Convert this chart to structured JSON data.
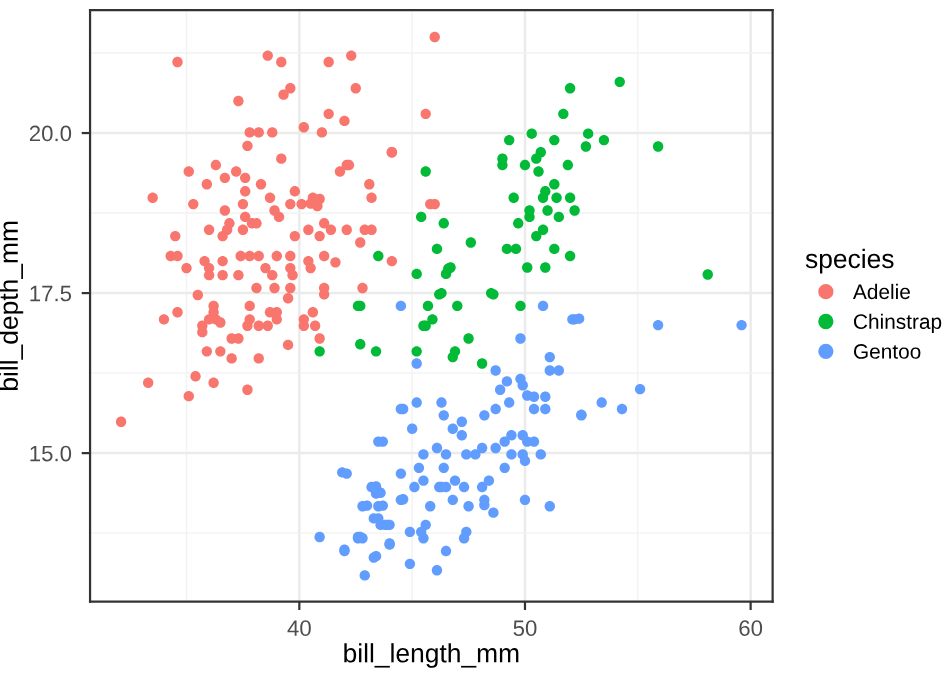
{
  "chart_data": {
    "type": "scatter",
    "xlabel": "bill_length_mm",
    "ylabel": "bill_depth_mm",
    "legend_title": "species",
    "legend": "right",
    "grid": true,
    "marker": "circle",
    "xlim": [
      30.725,
      60.975
    ],
    "ylim": [
      12.68,
      21.92
    ],
    "xticks": [
      40,
      50,
      60
    ],
    "yticks": [
      {
        "value": 15,
        "label": "15.0"
      },
      {
        "value": 17.5,
        "label": "17.5"
      },
      {
        "value": 20,
        "label": "20.0"
      }
    ],
    "series": [
      {
        "name": "Adelie",
        "color": "#f8766d",
        "x": [
          34.6,
          38.6,
          39.2,
          41.3,
          42.3,
          46.0,
          39.6,
          39.3,
          42.5,
          37.3,
          41.3,
          42.0,
          40.2,
          41.0,
          37.8,
          38.2,
          38.8,
          37.7,
          44.1,
          39.2,
          35.1,
          36.3,
          37.2,
          41.8,
          42.1,
          42.2,
          35.9,
          36.7,
          37.6,
          37.6,
          38.3,
          39.8,
          43.1,
          43.2,
          33.5,
          35.3,
          38.7,
          36.7,
          37.5,
          39.6,
          40.1,
          40.6,
          38.9,
          39.1,
          36.9,
          36.8,
          36.0,
          37.6,
          37.9,
          38.1,
          40.5,
          40.8,
          40.9,
          41.1,
          41.4,
          42.1,
          42.9,
          43.2,
          34.5,
          36.6,
          37.5,
          40.4,
          39.8,
          40.9,
          34.3,
          34.6,
          35.8,
          36.6,
          37.4,
          37.8,
          38.2,
          39.0,
          39.6,
          40.4,
          41.1,
          41.6,
          42.7,
          35.0,
          36.0,
          36.0,
          36.6,
          37.3,
          38.5,
          38.8,
          39.6,
          39.7,
          40.5,
          38.1,
          38.9,
          39.6,
          41.1,
          42.8,
          35.5,
          39.5,
          41.1,
          36.2,
          36.3,
          36.2,
          34.0,
          34.6,
          35.7,
          35.7,
          36.0,
          36.5,
          37.8,
          37.8,
          37.7,
          38.2,
          38.6,
          38.7,
          39.0,
          39.0,
          40.2,
          40.2,
          40.6,
          40.7,
          40.9,
          39.5,
          37.0,
          37.3,
          36.5,
          35.9,
          37.0,
          38.2,
          35.4,
          36.2,
          35.1,
          37.7,
          33.3,
          32.1,
          45.6,
          44.1,
          45.8,
          46.0,
          44.1
        ],
        "values": [
          21.11,
          21.21,
          21.11,
          21.11,
          21.21,
          21.5,
          20.7,
          20.6,
          20.7,
          20.5,
          20.3,
          20.19,
          20.09,
          20.01,
          20.01,
          20.01,
          20.01,
          19.8,
          19.7,
          19.6,
          19.4,
          19.5,
          19.4,
          19.4,
          19.5,
          19.5,
          19.2,
          19.3,
          19.3,
          19.09,
          19.2,
          19.09,
          19.2,
          18.99,
          18.99,
          18.89,
          18.99,
          18.79,
          18.89,
          18.89,
          18.89,
          18.99,
          18.79,
          18.69,
          18.59,
          18.49,
          18.49,
          18.69,
          18.59,
          18.59,
          18.9,
          18.86,
          18.97,
          18.59,
          18.49,
          18.49,
          18.49,
          18.49,
          18.39,
          18.39,
          18.49,
          18.49,
          18.39,
          18.39,
          18.08,
          18.08,
          18.0,
          18.0,
          18.08,
          18.08,
          18.08,
          18.08,
          18.08,
          18.0,
          18.08,
          17.98,
          18.29,
          17.89,
          17.89,
          17.78,
          17.78,
          17.78,
          17.89,
          17.78,
          17.89,
          17.78,
          17.89,
          17.58,
          17.58,
          17.58,
          17.58,
          17.58,
          17.47,
          17.42,
          17.48,
          17.3,
          17.09,
          17.2,
          17.09,
          17.2,
          16.99,
          16.89,
          17.09,
          17.04,
          17.3,
          17.09,
          16.99,
          16.99,
          16.99,
          17.2,
          17.2,
          17.09,
          17.09,
          16.99,
          17.2,
          16.99,
          16.79,
          16.69,
          16.79,
          16.79,
          16.59,
          16.59,
          16.48,
          16.48,
          16.2,
          16.1,
          15.89,
          15.99,
          16.1,
          15.49,
          20.3,
          19.7,
          18.89,
          18.89,
          18.0
        ]
      },
      {
        "name": "Chinstrap",
        "color": "#00ba38",
        "x": [
          43.5,
          42.6,
          42.7,
          42.7,
          43.4,
          40.9,
          54.2,
          52.0,
          51.7,
          49.3,
          50.3,
          51.3,
          52.8,
          53.5,
          52.7,
          55.9,
          49.0,
          49.0,
          50.0,
          50.5,
          50.7,
          50.6,
          51.9,
          45.6,
          51.3,
          50.9,
          50.8,
          51.4,
          52.0,
          49.5,
          45.4,
          46.4,
          50.2,
          51.0,
          52.2,
          50.2,
          51.5,
          49.7,
          50.8,
          50.5,
          47.6,
          46.1,
          49.2,
          49.6,
          51.3,
          52.0,
          45.2,
          46.5,
          46.6,
          46.7,
          50.1,
          50.9,
          46.3,
          48.5,
          58.1,
          45.7,
          47.0,
          46.2,
          48.6,
          49.8,
          45.9,
          45.6,
          45.5,
          47.5,
          46.9,
          46.8,
          45.2,
          48.1
        ],
        "values": [
          18.08,
          17.3,
          17.3,
          16.7,
          16.59,
          16.59,
          20.8,
          20.7,
          20.3,
          19.89,
          19.99,
          19.89,
          19.99,
          19.89,
          19.79,
          19.79,
          19.6,
          19.5,
          19.5,
          19.6,
          19.7,
          19.4,
          19.5,
          19.4,
          19.2,
          19.09,
          18.99,
          18.99,
          18.99,
          18.99,
          18.69,
          18.59,
          18.79,
          18.79,
          18.79,
          18.69,
          18.69,
          18.59,
          18.49,
          18.39,
          18.29,
          18.19,
          18.19,
          18.19,
          18.19,
          18.08,
          17.8,
          17.8,
          17.88,
          17.9,
          17.9,
          17.9,
          17.5,
          17.5,
          17.79,
          17.3,
          17.3,
          17.48,
          17.48,
          17.3,
          17.09,
          16.99,
          16.99,
          16.79,
          16.59,
          16.5,
          16.59,
          16.4
        ]
      },
      {
        "name": "Gentoo",
        "color": "#619cff",
        "x": [
          44.5,
          44.6,
          43.7,
          41.9,
          43.4,
          43.6,
          43.0,
          43.7,
          43.5,
          43.8,
          44.0,
          44.6,
          40.9,
          42.6,
          42.7,
          42.0,
          44.0,
          43.4,
          42.9,
          50.8,
          52.1,
          52.2,
          49.8,
          45.2,
          51.1,
          51.1,
          51.5,
          48.7,
          49.8,
          49.9,
          50.1,
          50.4,
          50.9,
          48.9,
          49.2,
          45.2,
          46.3,
          44.5,
          46.4,
          48.7,
          49.3,
          50.4,
          50.9,
          52.5,
          48.2,
          47.2,
          46.8,
          47.2,
          45.0,
          49.4,
          49.9,
          50.1,
          50.4,
          43.5,
          49.1,
          46.1,
          45.5,
          46.5,
          47.4,
          47.8,
          48.1,
          48.7,
          49.4,
          49.9,
          50.7,
          49.1,
          50.0,
          42.1,
          44.5,
          46.4,
          45.3,
          46.2,
          46.5,
          46.3,
          45.5,
          45.1,
          43.2,
          43.4,
          44.5,
          42.8,
          43.5,
          45.8,
          46.8,
          47.5,
          48.2,
          48.6,
          48.1,
          48.4,
          46.9,
          47.3,
          48.2,
          50.0,
          51.1,
          43.3,
          43.6,
          43.9,
          45.6,
          44.9,
          45.4,
          45.5,
          47.4,
          47.3,
          42.6,
          42.8,
          44.0,
          46.5,
          42.0,
          43.3,
          44.9,
          46.1,
          55.9,
          59.6,
          55.1,
          54.3,
          53.4,
          52.5,
          52.4
        ],
        "values": [
          17.3,
          15.69,
          15.18,
          14.7,
          14.48,
          14.38,
          14.18,
          14.18,
          13.98,
          13.88,
          13.88,
          14.28,
          13.69,
          13.69,
          13.69,
          13.49,
          13.59,
          13.39,
          13.09,
          17.3,
          17.09,
          17.09,
          16.79,
          16.4,
          16.5,
          16.29,
          16.29,
          16.29,
          16.16,
          16.06,
          15.9,
          15.88,
          15.88,
          15.99,
          16.12,
          15.79,
          15.79,
          15.69,
          15.59,
          15.69,
          15.79,
          15.69,
          15.69,
          15.59,
          15.59,
          15.49,
          15.38,
          15.28,
          15.38,
          15.28,
          15.28,
          15.18,
          15.18,
          15.18,
          15.18,
          15.08,
          14.98,
          14.98,
          14.98,
          14.98,
          15.08,
          15.08,
          14.98,
          14.98,
          14.98,
          14.77,
          14.88,
          14.68,
          14.68,
          14.77,
          14.77,
          14.47,
          14.47,
          14.47,
          14.57,
          14.47,
          14.47,
          14.37,
          14.27,
          14.17,
          14.17,
          14.17,
          14.27,
          14.17,
          14.19,
          14.07,
          14.47,
          14.57,
          14.57,
          14.47,
          14.27,
          14.27,
          14.17,
          13.98,
          13.88,
          13.88,
          13.88,
          13.77,
          13.77,
          13.67,
          13.77,
          13.67,
          13.67,
          13.67,
          13.57,
          13.47,
          13.47,
          13.37,
          13.27,
          13.17,
          17.0,
          17.0,
          16.0,
          15.69,
          15.79,
          15.6,
          17.1
        ]
      }
    ]
  }
}
